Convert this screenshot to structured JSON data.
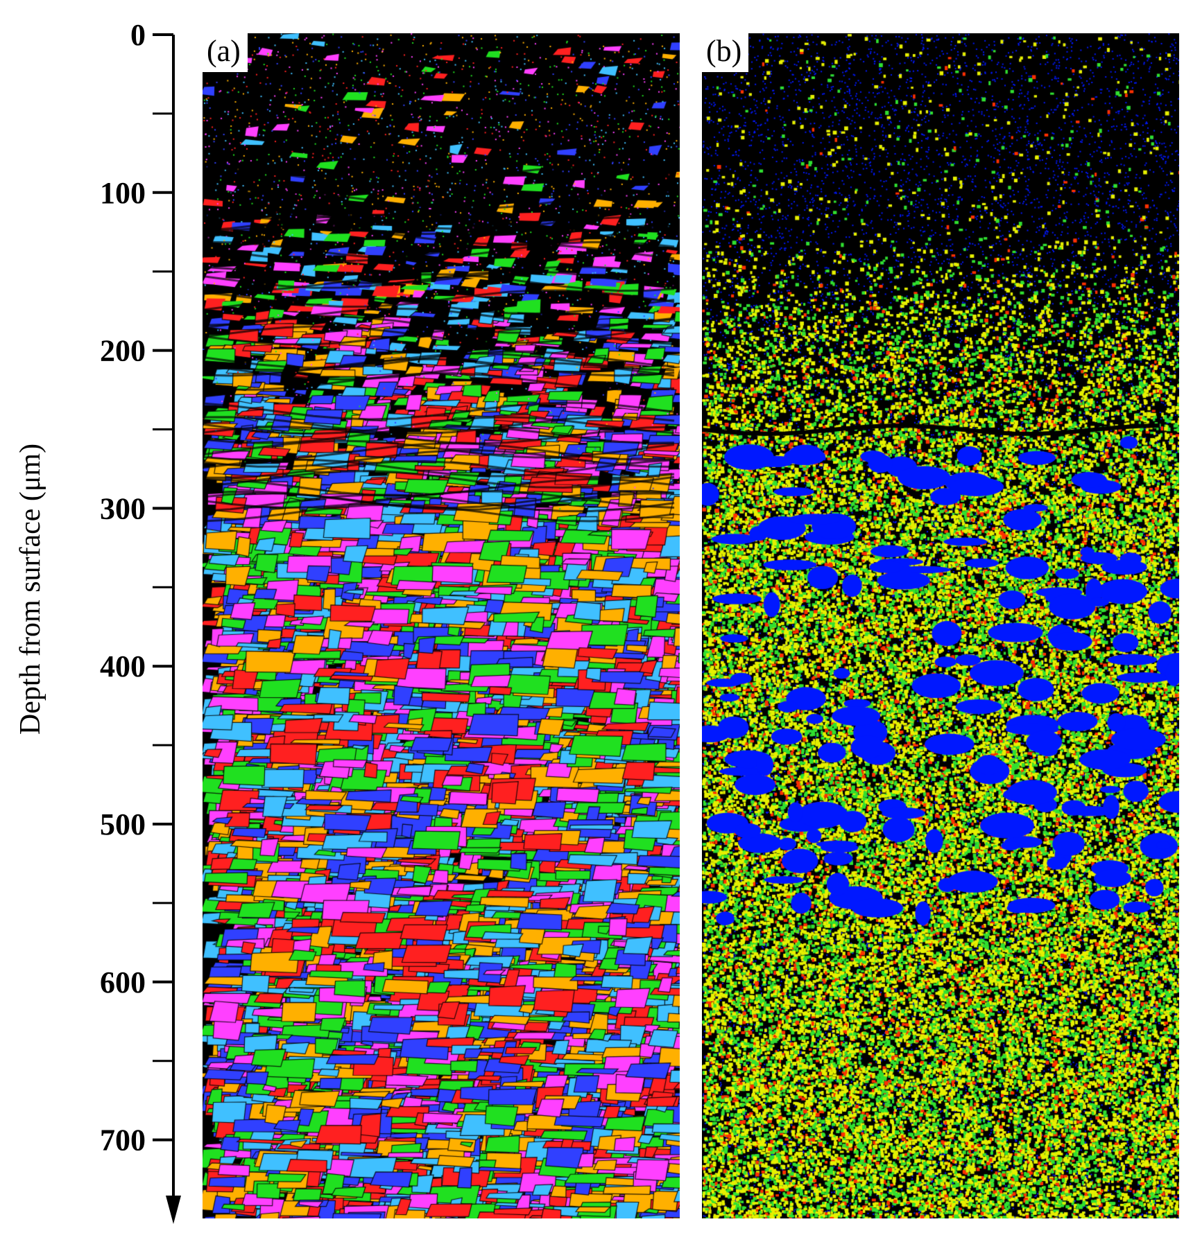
{
  "axis": {
    "label": "Depth from surface (μm)",
    "range": [
      0,
      750
    ],
    "ticks": [
      0,
      100,
      200,
      300,
      400,
      500,
      600,
      700
    ],
    "minor_ticks": [
      50,
      150,
      250,
      350,
      450,
      550,
      650
    ]
  },
  "panels": [
    {
      "tag": "(a)",
      "map": "orientation-map",
      "colors": [
        "#ff2020",
        "#20e020",
        "#3040ff",
        "#ff40ff",
        "#40c0ff",
        "#ffb000"
      ]
    },
    {
      "tag": "(b)",
      "map": "phase-map",
      "colors": [
        "#e6f000",
        "#30e030",
        "#0018ff",
        "#ff3000"
      ]
    }
  ]
}
